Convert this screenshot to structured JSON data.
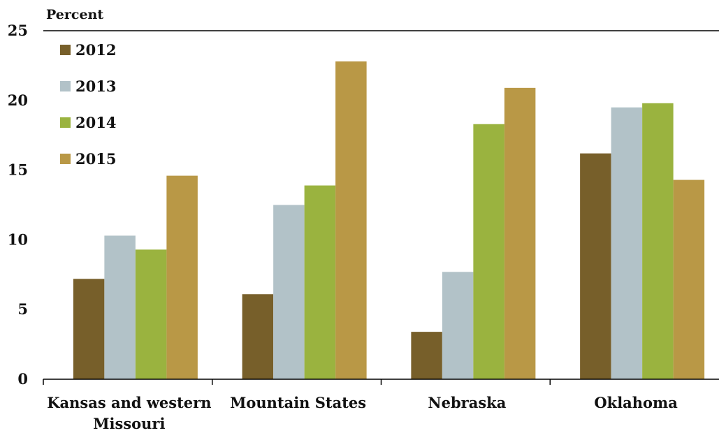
{
  "chart_data": {
    "type": "bar",
    "title": "",
    "ylabel": "Percent",
    "xlabel": "",
    "ylim": [
      0,
      25
    ],
    "yticks": [
      0,
      5,
      10,
      15,
      20,
      25
    ],
    "grid": false,
    "legend_position": "top-left",
    "categories": [
      [
        "Kansas and western",
        "Missouri"
      ],
      [
        "Mountain States"
      ],
      [
        "Nebraska"
      ],
      [
        "Oklahoma"
      ]
    ],
    "series": [
      {
        "name": "2012",
        "color": "#775f2a",
        "values": [
          7.2,
          6.1,
          3.4,
          16.2
        ]
      },
      {
        "name": "2013",
        "color": "#b2c2c8",
        "values": [
          10.3,
          12.5,
          7.7,
          19.5
        ]
      },
      {
        "name": "2014",
        "color": "#9ab33f",
        "values": [
          9.3,
          13.9,
          18.3,
          19.8
        ]
      },
      {
        "name": "2015",
        "color": "#b99846",
        "values": [
          14.6,
          22.8,
          20.9,
          14.3
        ]
      }
    ]
  }
}
